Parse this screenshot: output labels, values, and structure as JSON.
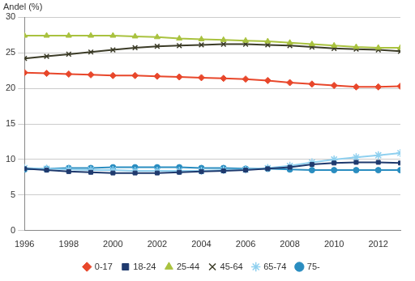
{
  "chart_data": {
    "type": "line",
    "ylabel": "Andel (%)",
    "categories": [
      "1996",
      null,
      "1998",
      null,
      "2000",
      null,
      "2002",
      null,
      "2004",
      null,
      "2006",
      null,
      "2008",
      null,
      "2010",
      null,
      "2012",
      null
    ],
    "series": [
      {
        "name": "0-17",
        "color": "#e8472b",
        "marker": "diamond",
        "values": [
          22.2,
          22.1,
          22.0,
          21.9,
          21.8,
          21.8,
          21.7,
          21.6,
          21.5,
          21.4,
          21.3,
          21.1,
          20.8,
          20.6,
          20.4,
          20.2,
          20.2,
          20.3
        ]
      },
      {
        "name": "18-24",
        "color": "#1f3a6e",
        "marker": "square",
        "values": [
          8.7,
          8.5,
          8.3,
          8.2,
          8.1,
          8.1,
          8.1,
          8.2,
          8.3,
          8.4,
          8.5,
          8.7,
          8.9,
          9.3,
          9.5,
          9.6,
          9.6,
          9.5
        ]
      },
      {
        "name": "25-44",
        "color": "#a9c23f",
        "marker": "triangle",
        "values": [
          27.4,
          27.4,
          27.4,
          27.4,
          27.4,
          27.3,
          27.2,
          27.0,
          26.9,
          26.8,
          26.7,
          26.6,
          26.4,
          26.2,
          26.0,
          25.8,
          25.7,
          25.7
        ]
      },
      {
        "name": "45-64",
        "color": "#3c3c28",
        "marker": "x",
        "values": [
          24.2,
          24.5,
          24.8,
          25.1,
          25.4,
          25.7,
          25.9,
          26.0,
          26.1,
          26.2,
          26.2,
          26.1,
          26.0,
          25.8,
          25.6,
          25.5,
          25.4,
          25.2
        ]
      },
      {
        "name": "65-74",
        "color": "#8fd0ef",
        "marker": "star",
        "values": [
          8.8,
          8.7,
          8.6,
          8.5,
          8.5,
          8.4,
          8.4,
          8.4,
          8.4,
          8.5,
          8.6,
          8.8,
          9.1,
          9.6,
          10.0,
          10.3,
          10.6,
          10.9
        ]
      },
      {
        "name": "75-",
        "color": "#2a8dc0",
        "marker": "circle",
        "values": [
          8.6,
          8.7,
          8.8,
          8.8,
          8.9,
          8.9,
          8.9,
          8.9,
          8.8,
          8.8,
          8.7,
          8.7,
          8.6,
          8.5,
          8.5,
          8.5,
          8.5,
          8.5
        ]
      }
    ],
    "ylim": [
      0,
      30
    ],
    "yticks": [
      0,
      5,
      10,
      15,
      20,
      25,
      30
    ],
    "grid": true,
    "legend": "bottom"
  }
}
